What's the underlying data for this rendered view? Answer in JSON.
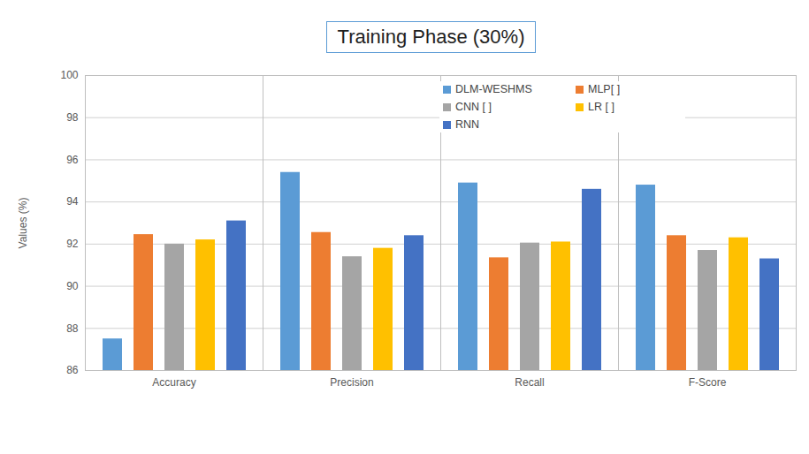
{
  "chart_data": {
    "type": "bar",
    "title": "Training Phase (30%)",
    "y_label": "Values (%)",
    "categories": [
      "Accuracy",
      "Precision",
      "Recall",
      "F-Score"
    ],
    "series": [
      {
        "name": "DLM-WESHMS",
        "color": "#5B9BD5",
        "values": [
          87.5,
          95.4,
          94.9,
          94.8
        ]
      },
      {
        "name": "MLP[ ]",
        "color": "#ED7D31",
        "values": [
          92.45,
          92.55,
          91.35,
          92.4
        ]
      },
      {
        "name": "CNN [ ]",
        "color": "#A5A5A5",
        "values": [
          92.0,
          91.4,
          92.05,
          91.7
        ]
      },
      {
        "name": "LR [ ]",
        "color": "#FFC000",
        "values": [
          92.2,
          91.8,
          92.1,
          92.3
        ]
      },
      {
        "name": "RNN",
        "color": "#4472C4",
        "values": [
          93.1,
          92.4,
          94.6,
          91.3
        ]
      }
    ],
    "ylim": [
      86,
      100
    ],
    "yticks": [
      86,
      88,
      90,
      92,
      94,
      96,
      98,
      100
    ],
    "grid": true,
    "legend": "top-right"
  }
}
